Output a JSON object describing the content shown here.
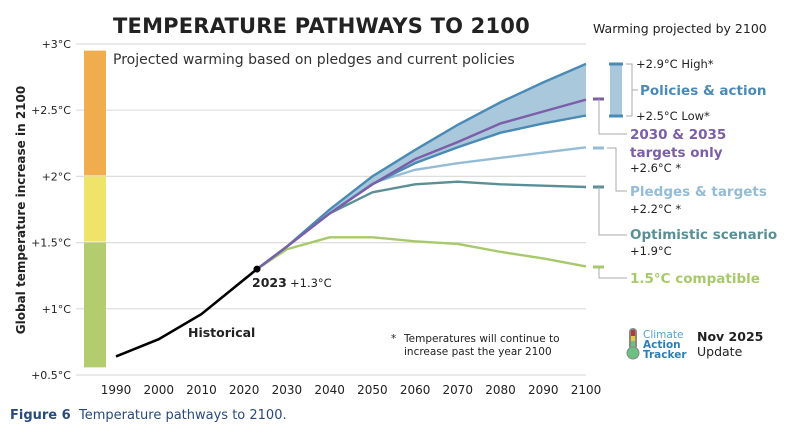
{
  "chart_data": {
    "type": "line",
    "title": "TEMPERATURE PATHWAYS TO 2100",
    "subtitle": "Projected warming based on pledges and current policies",
    "ylabel": "Global temperature increase in 2100",
    "xlabel": "",
    "ylim": [
      0.5,
      3.0
    ],
    "xlim": [
      1990,
      2100
    ],
    "grid": true,
    "y_ticks": [
      {
        "value": 3.0,
        "label": "+3°C"
      },
      {
        "value": 2.5,
        "label": "+2.5°C"
      },
      {
        "value": 2.0,
        "label": "+2°C"
      },
      {
        "value": 1.5,
        "label": "+1.5°C"
      },
      {
        "value": 1.0,
        "label": "+1°C"
      },
      {
        "value": 0.5,
        "label": "+0.5°C"
      }
    ],
    "x_ticks": [
      1990,
      2000,
      2010,
      2020,
      2030,
      2040,
      2050,
      2060,
      2070,
      2080,
      2090,
      2100
    ],
    "color_bands": [
      {
        "from": 2.0,
        "to": 2.95,
        "color": "#f0ad4e"
      },
      {
        "from": 1.5,
        "to": 2.0,
        "color": "#f0e36a"
      },
      {
        "from": 0.55,
        "to": 1.5,
        "color": "#b3cd6e"
      }
    ],
    "historical": {
      "name": "Historical",
      "color": "#000000",
      "x": [
        1990,
        2000,
        2010,
        2023
      ],
      "values": [
        0.64,
        0.77,
        0.96,
        1.3
      ]
    },
    "marker": {
      "year": 2023,
      "value": 1.3,
      "label": "2023",
      "value_label": "+1.3°C"
    },
    "policies_band": {
      "name": "Policies & action",
      "color": "#4a8ab5",
      "fill": "#a9c8dc",
      "x": [
        2023,
        2030,
        2040,
        2050,
        2060,
        2070,
        2080,
        2090,
        2100
      ],
      "high": [
        1.3,
        1.47,
        1.75,
        2.0,
        2.2,
        2.39,
        2.56,
        2.71,
        2.85
      ],
      "low": [
        1.3,
        1.47,
        1.72,
        1.94,
        2.1,
        2.22,
        2.33,
        2.4,
        2.46
      ]
    },
    "series": [
      {
        "name": "2030 & 2035 targets only",
        "color": "#7b5ea7",
        "x": [
          2023,
          2030,
          2040,
          2050,
          2060,
          2070,
          2080,
          2090,
          2100
        ],
        "values": [
          1.3,
          1.47,
          1.72,
          1.94,
          2.13,
          2.26,
          2.4,
          2.49,
          2.58
        ]
      },
      {
        "name": "Pledges & targets",
        "color": "#94bcd6",
        "x": [
          2023,
          2030,
          2040,
          2050,
          2060,
          2070,
          2080,
          2090,
          2100
        ],
        "values": [
          1.3,
          1.47,
          1.72,
          1.95,
          2.05,
          2.1,
          2.14,
          2.18,
          2.22
        ]
      },
      {
        "name": "Optimistic scenario",
        "color": "#5a8f96",
        "x": [
          2023,
          2030,
          2040,
          2050,
          2060,
          2070,
          2080,
          2090,
          2100
        ],
        "values": [
          1.3,
          1.47,
          1.72,
          1.88,
          1.94,
          1.96,
          1.94,
          1.93,
          1.92
        ]
      },
      {
        "name": "1.5°C compatible",
        "color": "#a8c96a",
        "x": [
          2023,
          2030,
          2040,
          2050,
          2060,
          2070,
          2080,
          2090,
          2100
        ],
        "values": [
          1.3,
          1.45,
          1.54,
          1.54,
          1.51,
          1.49,
          1.43,
          1.38,
          1.32
        ]
      }
    ],
    "legend": {
      "header": "Warming projected by 2100",
      "placement": "right",
      "policies_high": "+2.9°C High*",
      "policies_label": "Policies & action",
      "policies_low": "+2.5°C Low*",
      "targets_label_1": "2030 & 2035",
      "targets_label_2": "targets only",
      "targets_value": "+2.6°C *",
      "pledges_label": "Pledges & targets",
      "pledges_value": "+2.2°C *",
      "optimistic_label": "Optimistic scenario",
      "optimistic_value": "+1.9°C",
      "compatible_label": "1.5°C compatible"
    },
    "annotations": {
      "historical_label": "Historical",
      "footnote_star": "*",
      "footnote_line1": "Temperatures will continue to",
      "footnote_line2": "increase past the year 2100"
    }
  },
  "branding": {
    "logo_line1": "Climate",
    "logo_line2": "Action",
    "logo_line3": "Tracker",
    "update_date": "Nov 2025",
    "update_label": "Update"
  },
  "caption": {
    "figure_label": "Figure 6",
    "text": "Temperature pathways to 2100."
  }
}
